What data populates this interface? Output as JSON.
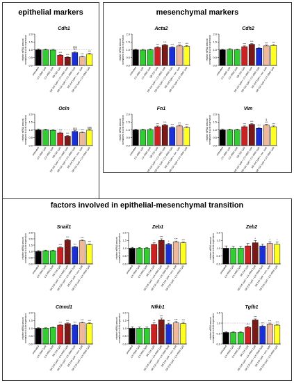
{
  "panels": {
    "epithelial": {
      "title": "epithelial markers"
    },
    "mesenchymal": {
      "title": "mesenchymal markers"
    },
    "emt": {
      "title": "factors involved in epithelial-mesenchymal transition"
    }
  },
  "common": {
    "ylabel_line1": "relative mRNA amount",
    "ylabel_line2": "normalized to Actb expression",
    "categories": [
      "untreated",
      "CX-4945 1µM",
      "CX-4945 2µM",
      "SB 216 1µM",
      "SB 216 1µM + CX-4945 1µM",
      "SB 216 1µM + CX-4945 2µM",
      "SB 216 1µM + con. 1µM",
      "SB 216 1µM + CX-4945 1µM"
    ],
    "colors": [
      "#000000",
      "#33cc33",
      "#33cc33",
      "#cc2222",
      "#7b1818",
      "#1a2fd6",
      "#f0b89a",
      "#ffff22"
    ]
  },
  "chart_data": [
    {
      "type": "bar",
      "title": "Cdh1",
      "ylim": [
        0,
        2.0
      ],
      "yticks": [
        "0.0",
        "0.5",
        "1.0",
        "1.5",
        "2.0"
      ],
      "values": [
        1.0,
        1.0,
        0.98,
        0.65,
        0.52,
        0.82,
        0.55,
        0.72
      ],
      "errors": [
        0.06,
        0.05,
        0.05,
        0.05,
        0.04,
        0.05,
        0.04,
        0.05
      ],
      "stars": [
        "",
        "",
        "",
        "***",
        "***",
        "***",
        "***",
        "***"
      ],
      "extra": [
        "",
        "",
        "",
        "",
        "",
        "§§§",
        "",
        ""
      ]
    },
    {
      "type": "bar",
      "title": "Ocln",
      "ylim": [
        0,
        2.0
      ],
      "yticks": [
        "0.0",
        "0.5",
        "1.0",
        "1.5",
        "2.0"
      ],
      "values": [
        1.0,
        1.0,
        0.97,
        0.8,
        0.6,
        0.9,
        0.82,
        0.98
      ],
      "errors": [
        0.06,
        0.05,
        0.05,
        0.05,
        0.04,
        0.05,
        0.05,
        0.05
      ],
      "stars": [
        "",
        "",
        "",
        "***",
        "***",
        "",
        "***",
        ""
      ],
      "extra": [
        "",
        "",
        "",
        "",
        "",
        "§§§",
        "",
        "§§§"
      ]
    },
    {
      "type": "bar",
      "title": "Acta2",
      "ylim": [
        0,
        2.0
      ],
      "yticks": [
        "0.0",
        "0.5",
        "1.0",
        "1.5",
        "2.0"
      ],
      "values": [
        1.0,
        0.98,
        1.0,
        1.15,
        1.3,
        1.15,
        1.25,
        1.22
      ],
      "errors": [
        0.05,
        0.05,
        0.05,
        0.05,
        0.05,
        0.05,
        0.05,
        0.05
      ],
      "stars": [
        "",
        "",
        "",
        "***",
        "***",
        "***",
        "***",
        "***"
      ],
      "extra": [
        "",
        "",
        "",
        "",
        "",
        "",
        "",
        ""
      ]
    },
    {
      "type": "bar",
      "title": "Cdh2",
      "ylim": [
        0,
        2.0
      ],
      "yticks": [
        "0.0",
        "0.5",
        "1.0",
        "1.5",
        "2.0"
      ],
      "values": [
        1.0,
        1.02,
        1.0,
        1.2,
        1.35,
        1.1,
        1.25,
        1.28
      ],
      "errors": [
        0.05,
        0.05,
        0.05,
        0.05,
        0.05,
        0.05,
        0.05,
        0.05
      ],
      "stars": [
        "",
        "",
        "",
        "***",
        "***",
        "**",
        "***",
        "***"
      ],
      "extra": [
        "",
        "",
        "",
        "",
        "",
        "",
        "",
        ""
      ]
    },
    {
      "type": "bar",
      "title": "Fn1",
      "ylim": [
        0,
        2.0
      ],
      "yticks": [
        "0.0",
        "0.5",
        "1.0",
        "1.5",
        "2.0"
      ],
      "values": [
        1.0,
        1.0,
        1.02,
        1.2,
        1.3,
        1.15,
        1.25,
        1.15
      ],
      "errors": [
        0.05,
        0.05,
        0.05,
        0.05,
        0.05,
        0.05,
        0.05,
        0.05
      ],
      "stars": [
        "",
        "",
        "",
        "***",
        "***",
        "***",
        "***",
        "***"
      ],
      "extra": [
        "",
        "",
        "",
        "",
        "",
        "",
        "",
        ""
      ]
    },
    {
      "type": "bar",
      "title": "Vim",
      "ylim": [
        0,
        2.0
      ],
      "yticks": [
        "0.0",
        "0.5",
        "1.0",
        "1.5",
        "2.0"
      ],
      "values": [
        1.0,
        1.0,
        1.0,
        1.2,
        1.35,
        1.1,
        1.3,
        1.2
      ],
      "errors": [
        0.06,
        0.05,
        0.05,
        0.05,
        0.05,
        0.05,
        0.05,
        0.05
      ],
      "stars": [
        "",
        "",
        "",
        "***",
        "***",
        "***",
        "***",
        "***"
      ],
      "extra": [
        "",
        "",
        "",
        "",
        "",
        "",
        "§",
        ""
      ]
    },
    {
      "type": "bar",
      "title": "Snail1",
      "ylim": [
        0,
        2.5
      ],
      "yticks": [
        "0.0",
        "0.5",
        "1.0",
        "1.5",
        "2.0",
        "2.5"
      ],
      "values": [
        1.0,
        1.05,
        1.05,
        1.3,
        1.9,
        1.35,
        1.85,
        1.55
      ],
      "errors": [
        0.06,
        0.05,
        0.05,
        0.05,
        0.06,
        0.05,
        0.06,
        0.05
      ],
      "stars": [
        "",
        "",
        "",
        "***",
        "***",
        "***",
        "***",
        "***"
      ],
      "extra": [
        "",
        "",
        "",
        "",
        "",
        "",
        "",
        ""
      ]
    },
    {
      "type": "bar",
      "title": "Zeb1",
      "ylim": [
        0,
        2.0
      ],
      "yticks": [
        "0.0",
        "0.5",
        "1.0",
        "1.5",
        "2.0"
      ],
      "values": [
        1.0,
        1.0,
        1.0,
        1.25,
        1.5,
        1.25,
        1.4,
        1.35
      ],
      "errors": [
        0.06,
        0.05,
        0.05,
        0.1,
        0.1,
        0.06,
        0.06,
        0.06
      ],
      "stars": [
        "",
        "",
        "",
        "*",
        "***",
        "*",
        "***",
        "***"
      ],
      "extra": [
        "",
        "",
        "",
        "",
        "",
        "",
        "",
        ""
      ]
    },
    {
      "type": "bar",
      "title": "Zeb2",
      "ylim": [
        0,
        2.0
      ],
      "yticks": [
        "0.0",
        "0.5",
        "1.0",
        "1.5",
        "2.0"
      ],
      "values": [
        1.0,
        1.0,
        1.0,
        1.15,
        1.35,
        1.15,
        1.3,
        1.25
      ],
      "errors": [
        0.15,
        0.12,
        0.12,
        0.15,
        0.15,
        0.12,
        0.12,
        0.15
      ],
      "stars": [
        "",
        "",
        "",
        "",
        "*",
        "",
        "*",
        "*"
      ],
      "extra": [
        "",
        "",
        "",
        "",
        "",
        "",
        "",
        ""
      ]
    },
    {
      "type": "bar",
      "title": "Ctnnd1",
      "ylim": [
        0,
        2.0
      ],
      "yticks": [
        "0.0",
        "0.5",
        "1.0",
        "1.5",
        "2.0"
      ],
      "values": [
        1.0,
        1.0,
        1.05,
        1.2,
        1.3,
        1.2,
        1.35,
        1.3
      ],
      "errors": [
        0.04,
        0.04,
        0.04,
        0.05,
        0.05,
        0.05,
        0.05,
        0.05
      ],
      "stars": [
        "",
        "",
        "",
        "***",
        "***",
        "***",
        "***",
        "***"
      ],
      "extra": [
        "",
        "",
        "",
        "",
        "",
        "",
        "",
        ""
      ]
    },
    {
      "type": "bar",
      "title": "Nfkb1",
      "ylim": [
        0,
        2.0
      ],
      "yticks": [
        "0.0",
        "0.5",
        "1.0",
        "1.5",
        "2.0"
      ],
      "values": [
        1.0,
        1.0,
        1.0,
        1.25,
        1.55,
        1.25,
        1.35,
        1.3
      ],
      "errors": [
        0.1,
        0.08,
        0.08,
        0.1,
        0.1,
        0.08,
        0.08,
        0.1
      ],
      "stars": [
        "",
        "",
        "",
        "**",
        "***",
        "***",
        "***",
        "***"
      ],
      "extra": [
        "",
        "",
        "",
        "",
        "",
        "",
        "",
        ""
      ]
    },
    {
      "type": "bar",
      "title": "Tgfb1",
      "ylim": [
        0,
        1.5
      ],
      "yticks": [
        "0.0",
        "0.5",
        "1.0",
        "1.5"
      ],
      "values": [
        0.55,
        0.55,
        0.55,
        0.8,
        1.15,
        0.85,
        0.95,
        0.9
      ],
      "errors": [
        0.04,
        0.04,
        0.04,
        0.05,
        0.05,
        0.05,
        0.05,
        0.05
      ],
      "stars": [
        "",
        "",
        "",
        "***",
        "***",
        "***",
        "***",
        "***"
      ],
      "extra": [
        "",
        "",
        "",
        "",
        "",
        "",
        "",
        ""
      ]
    }
  ]
}
